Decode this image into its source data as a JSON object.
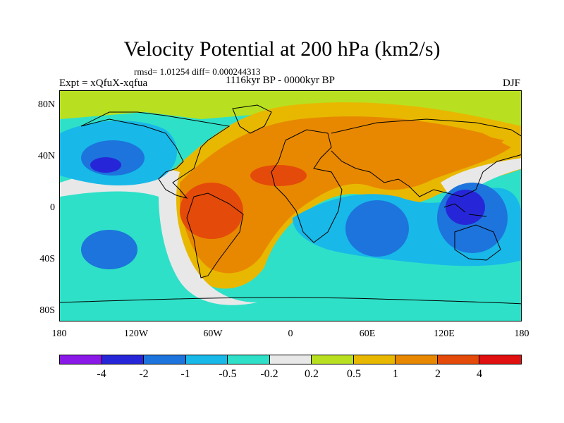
{
  "title": "Velocity Potential at 200 hPa (km2/s)",
  "stats": "rmsd= 1.01254 diff= 0.000244313",
  "experiment": "Expt = xQfuX-xqfua",
  "period": "1116kyr BP - 0000kyr BP",
  "season": "DJF",
  "y_ticks": [
    "80N",
    "40N",
    "0",
    "40S",
    "80S"
  ],
  "x_ticks": [
    "180",
    "120W",
    "60W",
    "0",
    "60E",
    "120E",
    "180"
  ],
  "colorbar": {
    "colors": [
      "#8a19e8",
      "#2626d8",
      "#1c74dc",
      "#18b8e8",
      "#2fe0c8",
      "#e8e8e8",
      "#b8e020",
      "#e8b800",
      "#e88800",
      "#e44a0a",
      "#e01010"
    ],
    "labels": [
      "-4",
      "-2",
      "-1",
      "-0.5",
      "-0.2",
      "0.2",
      "0.5",
      "1",
      "2",
      "4"
    ]
  },
  "chart_data": {
    "type": "heatmap",
    "title": "Velocity Potential at 200 hPa (km2/s)",
    "lon_range": [
      -180,
      180
    ],
    "lat_range": [
      -90,
      90
    ],
    "levels": [
      -4,
      -2,
      -1,
      -0.5,
      -0.2,
      0.2,
      0.5,
      1,
      2,
      4
    ],
    "features": [
      {
        "description": "negative center North Pacific",
        "lon": -140,
        "lat": 30,
        "value": -2.5
      },
      {
        "description": "negative center South Pacific",
        "lon": -130,
        "lat": -25,
        "value": -1.2
      },
      {
        "description": "positive center South America",
        "lon": -55,
        "lat": -5,
        "value": 2.5
      },
      {
        "description": "positive center North Africa",
        "lon": -10,
        "lat": 25,
        "value": 2.2
      },
      {
        "description": "positive band Asia",
        "lon": 90,
        "lat": 50,
        "value": 1.5
      },
      {
        "description": "negative center Indian Ocean",
        "lon": 60,
        "lat": -10,
        "value": -1.0
      },
      {
        "description": "negative center Maritime Continent",
        "lon": 125,
        "lat": 5,
        "value": -2.8
      }
    ]
  }
}
